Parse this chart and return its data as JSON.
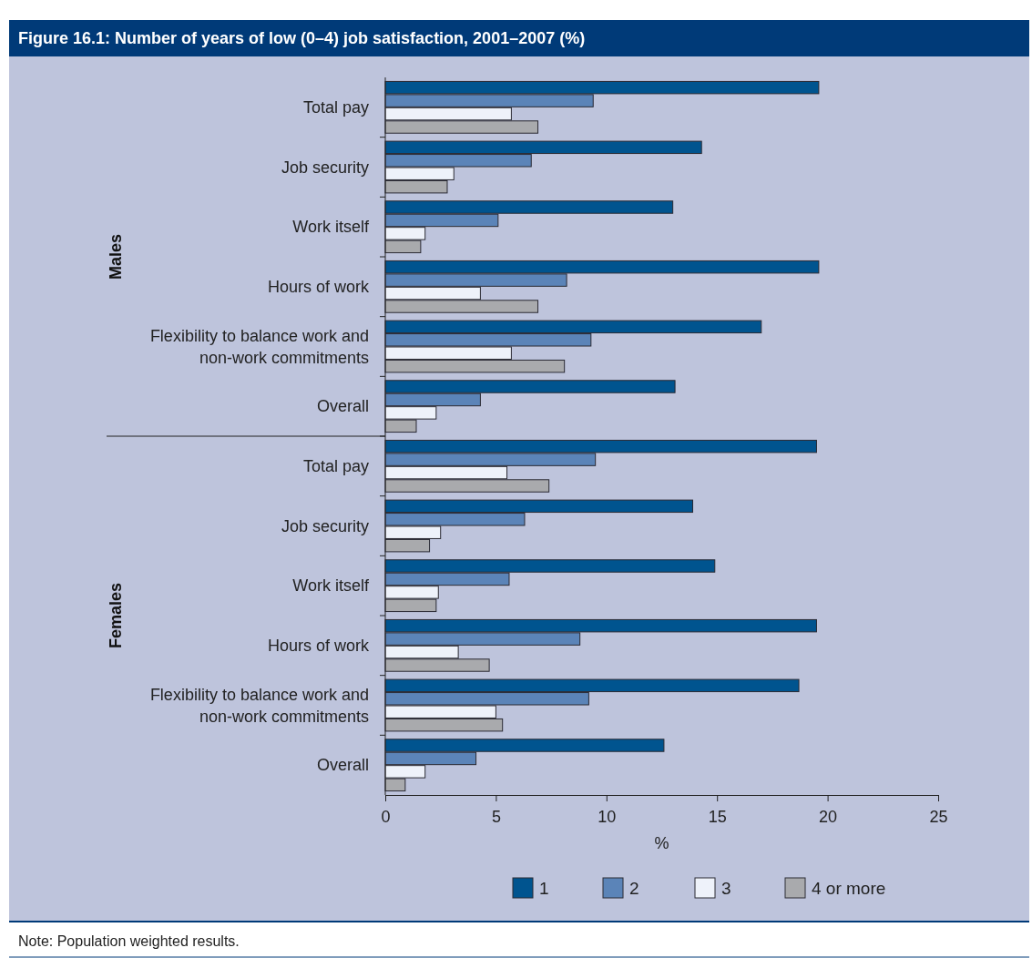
{
  "chart_data": {
    "type": "bar",
    "orientation": "horizontal",
    "title": "Figure 16.1: Number of years of low (0–4) job satisfaction, 2001–2007 (%)",
    "xlabel": "%",
    "categories": [
      "Total pay",
      "Job security",
      "Work itself",
      "Hours of work",
      "Flexibility to balance work and non-work commitments",
      "Overall",
      "Total pay",
      "Job security",
      "Work itself",
      "Hours of work",
      "Flexibility to balance work and non-work commitments",
      "Overall"
    ],
    "series": [
      {
        "name": "1",
        "color": "#00548f",
        "values": [
          19.6,
          14.3,
          13.0,
          19.6,
          17.0,
          13.1,
          19.5,
          13.9,
          14.9,
          19.5,
          18.7,
          12.6
        ]
      },
      {
        "name": "2",
        "color": "#5b84b8",
        "values": [
          9.4,
          6.6,
          5.1,
          8.2,
          9.3,
          4.3,
          9.5,
          6.3,
          5.6,
          8.8,
          9.2,
          4.1
        ]
      },
      {
        "name": "3",
        "color": "#eef2fa",
        "values": [
          5.7,
          3.1,
          1.8,
          4.3,
          5.7,
          2.3,
          5.5,
          2.5,
          2.4,
          3.3,
          5.0,
          1.8
        ]
      },
      {
        "name": "4 or more",
        "color": "#a9aaad",
        "values": [
          6.9,
          2.8,
          1.6,
          6.9,
          8.1,
          1.4,
          7.4,
          2.0,
          2.3,
          4.7,
          5.3,
          0.9
        ]
      }
    ],
    "xlim": [
      0,
      25
    ],
    "xticks": [
      0,
      5,
      10,
      15,
      20,
      25
    ],
    "grid": false,
    "legend": "bottom",
    "annotations": [
      "Males",
      "Females",
      "Note: Population weighted results."
    ]
  }
}
